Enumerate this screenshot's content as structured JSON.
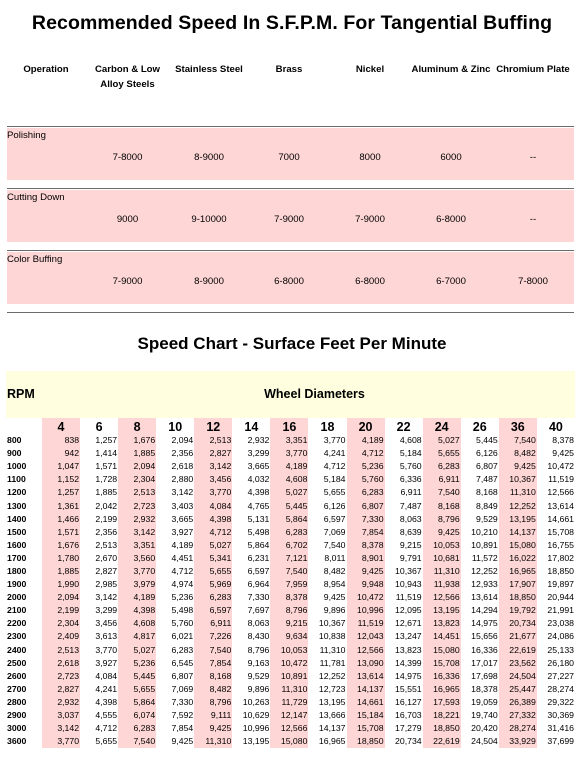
{
  "title1": "Recommended Speed In S.F.P.M. For Tangential Buffing",
  "buffing": {
    "headers": [
      "Operation",
      "Carbon & Low Alloy Steels",
      "Stainless Steel",
      "Brass",
      "Nickel",
      "Aluminum & Zinc",
      "Chromium Plate"
    ],
    "rows": [
      {
        "operation": "Polishing",
        "values": [
          "7-8000",
          "8-9000",
          "7000",
          "8000",
          "6000",
          "--"
        ]
      },
      {
        "operation": "Cutting Down",
        "values": [
          "9000",
          "9-10000",
          "7-9000",
          "7-9000",
          "6-8000",
          "--"
        ]
      },
      {
        "operation": "Color Buffing",
        "values": [
          "7-9000",
          "8-9000",
          "6-8000",
          "6-8000",
          "6-7000",
          "7-8000"
        ]
      }
    ]
  },
  "title2": "Speed Chart - Surface Feet Per Minute",
  "speed": {
    "rpm_label": "RPM",
    "wheel_label": "Wheel Diameters",
    "diameters": [
      "4",
      "6",
      "8",
      "10",
      "12",
      "14",
      "16",
      "18",
      "20",
      "22",
      "24",
      "26",
      "36",
      "40"
    ],
    "rows": [
      {
        "rpm": "800",
        "values": [
          "838",
          "1,257",
          "1,676",
          "2,094",
          "2,513",
          "2,932",
          "3,351",
          "3,770",
          "4,189",
          "4,608",
          "5,027",
          "5,445",
          "7,540",
          "8,378"
        ]
      },
      {
        "rpm": "900",
        "values": [
          "942",
          "1,414",
          "1,885",
          "2,356",
          "2,827",
          "3,299",
          "3,770",
          "4,241",
          "4,712",
          "5,184",
          "5,655",
          "6,126",
          "8,482",
          "9,425"
        ]
      },
      {
        "rpm": "1000",
        "values": [
          "1,047",
          "1,571",
          "2,094",
          "2,618",
          "3,142",
          "3,665",
          "4,189",
          "4,712",
          "5,236",
          "5,760",
          "6,283",
          "6,807",
          "9,425",
          "10,472"
        ]
      },
      {
        "rpm": "1100",
        "values": [
          "1,152",
          "1,728",
          "2,304",
          "2,880",
          "3,456",
          "4,032",
          "4,608",
          "5,184",
          "5,760",
          "6,336",
          "6,911",
          "7,487",
          "10,367",
          "11,519"
        ]
      },
      {
        "rpm": "1200",
        "values": [
          "1,257",
          "1,885",
          "2,513",
          "3,142",
          "3,770",
          "4,398",
          "5,027",
          "5,655",
          "6,283",
          "6,911",
          "7,540",
          "8,168",
          "11,310",
          "12,566"
        ]
      },
      {
        "rpm": "1300",
        "values": [
          "1,361",
          "2,042",
          "2,723",
          "3,403",
          "4,084",
          "4,765",
          "5,445",
          "6,126",
          "6,807",
          "7,487",
          "8,168",
          "8,849",
          "12,252",
          "13,614"
        ]
      },
      {
        "rpm": "1400",
        "values": [
          "1,466",
          "2,199",
          "2,932",
          "3,665",
          "4,398",
          "5,131",
          "5,864",
          "6,597",
          "7,330",
          "8,063",
          "8,796",
          "9,529",
          "13,195",
          "14,661"
        ]
      },
      {
        "rpm": "1500",
        "values": [
          "1,571",
          "2,356",
          "3,142",
          "3,927",
          "4,712",
          "5,498",
          "6,283",
          "7,069",
          "7,854",
          "8,639",
          "9,425",
          "10,210",
          "14,137",
          "15,708"
        ]
      },
      {
        "rpm": "1600",
        "values": [
          "1,676",
          "2,513",
          "3,351",
          "4,189",
          "5,027",
          "5,864",
          "6,702",
          "7,540",
          "8,378",
          "9,215",
          "10,053",
          "10,891",
          "15,080",
          "16,755"
        ]
      },
      {
        "rpm": "1700",
        "values": [
          "1,780",
          "2,670",
          "3,560",
          "4,451",
          "5,341",
          "6,231",
          "7,121",
          "8,011",
          "8,901",
          "9,791",
          "10,681",
          "11,572",
          "16,022",
          "17,802"
        ]
      },
      {
        "rpm": "1800",
        "values": [
          "1,885",
          "2,827",
          "3,770",
          "4,712",
          "5,655",
          "6,597",
          "7,540",
          "8,482",
          "9,425",
          "10,367",
          "11,310",
          "12,252",
          "16,965",
          "18,850"
        ]
      },
      {
        "rpm": "1900",
        "values": [
          "1,990",
          "2,985",
          "3,979",
          "4,974",
          "5,969",
          "6,964",
          "7,959",
          "8,954",
          "9,948",
          "10,943",
          "11,938",
          "12,933",
          "17,907",
          "19,897"
        ]
      },
      {
        "rpm": "2000",
        "values": [
          "2,094",
          "3,142",
          "4,189",
          "5,236",
          "6,283",
          "7,330",
          "8,378",
          "9,425",
          "10,472",
          "11,519",
          "12,566",
          "13,614",
          "18,850",
          "20,944"
        ]
      },
      {
        "rpm": "2100",
        "values": [
          "2,199",
          "3,299",
          "4,398",
          "5,498",
          "6,597",
          "7,697",
          "8,796",
          "9,896",
          "10,996",
          "12,095",
          "13,195",
          "14,294",
          "19,792",
          "21,991"
        ]
      },
      {
        "rpm": "2200",
        "values": [
          "2,304",
          "3,456",
          "4,608",
          "5,760",
          "6,911",
          "8,063",
          "9,215",
          "10,367",
          "11,519",
          "12,671",
          "13,823",
          "14,975",
          "20,734",
          "23,038"
        ]
      },
      {
        "rpm": "2300",
        "values": [
          "2,409",
          "3,613",
          "4,817",
          "6,021",
          "7,226",
          "8,430",
          "9,634",
          "10,838",
          "12,043",
          "13,247",
          "14,451",
          "15,656",
          "21,677",
          "24,086"
        ]
      },
      {
        "rpm": "2400",
        "values": [
          "2,513",
          "3,770",
          "5,027",
          "6,283",
          "7,540",
          "8,796",
          "10,053",
          "11,310",
          "12,566",
          "13,823",
          "15,080",
          "16,336",
          "22,619",
          "25,133"
        ]
      },
      {
        "rpm": "2500",
        "values": [
          "2,618",
          "3,927",
          "5,236",
          "6,545",
          "7,854",
          "9,163",
          "10,472",
          "11,781",
          "13,090",
          "14,399",
          "15,708",
          "17,017",
          "23,562",
          "26,180"
        ]
      },
      {
        "rpm": "2600",
        "values": [
          "2,723",
          "4,084",
          "5,445",
          "6,807",
          "8,168",
          "9,529",
          "10,891",
          "12,252",
          "13,614",
          "14,975",
          "16,336",
          "17,698",
          "24,504",
          "27,227"
        ]
      },
      {
        "rpm": "2700",
        "values": [
          "2,827",
          "4,241",
          "5,655",
          "7,069",
          "8,482",
          "9,896",
          "11,310",
          "12,723",
          "14,137",
          "15,551",
          "16,965",
          "18,378",
          "25,447",
          "28,274"
        ]
      },
      {
        "rpm": "2800",
        "values": [
          "2,932",
          "4,398",
          "5,864",
          "7,330",
          "8,796",
          "10,263",
          "11,729",
          "13,195",
          "14,661",
          "16,127",
          "17,593",
          "19,059",
          "26,389",
          "29,322"
        ]
      },
      {
        "rpm": "2900",
        "values": [
          "3,037",
          "4,555",
          "6,074",
          "7,592",
          "9,111",
          "10,629",
          "12,147",
          "13,666",
          "15,184",
          "16,703",
          "18,221",
          "19,740",
          "27,332",
          "30,369"
        ]
      },
      {
        "rpm": "3000",
        "values": [
          "3,142",
          "4,712",
          "6,283",
          "7,854",
          "9,425",
          "10,996",
          "12,566",
          "14,137",
          "15,708",
          "17,279",
          "18,850",
          "20,420",
          "28,274",
          "31,416"
        ]
      },
      {
        "rpm": "3600",
        "values": [
          "3,770",
          "5,655",
          "7,540",
          "9,425",
          "11,310",
          "13,195",
          "15,080",
          "16,965",
          "18,850",
          "20,734",
          "22,619",
          "24,504",
          "33,929",
          "37,699"
        ]
      }
    ]
  }
}
